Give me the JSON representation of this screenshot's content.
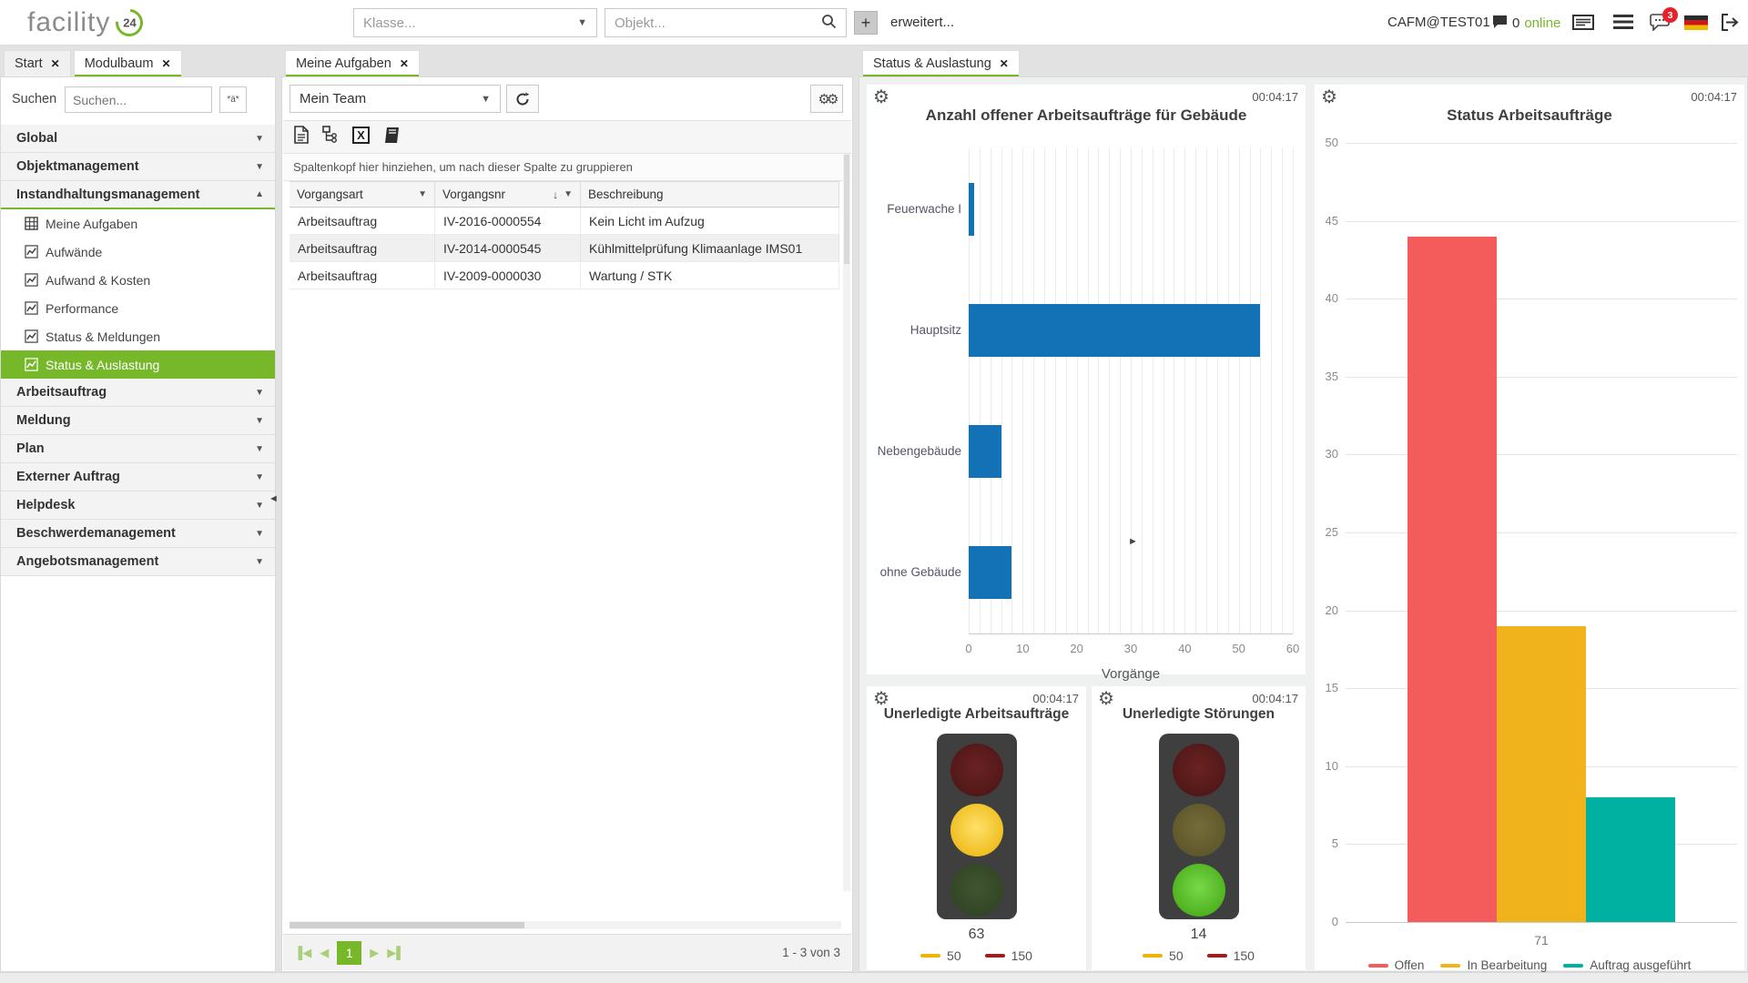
{
  "topbar": {
    "logo_text": "facility",
    "logo_badge": "24",
    "klasse_placeholder": "Klasse...",
    "objekt_placeholder": "Objekt...",
    "plus_label": "+",
    "erweitert_label": "erweitert...",
    "username": "CAFM@TEST01",
    "online_count": "0",
    "online_label": "online",
    "chat_badge_count": "3",
    "icon_names": [
      "chat-icon",
      "panel-icon",
      "menu-icon",
      "messages-icon",
      "flag-de-icon",
      "logout-icon"
    ]
  },
  "left_panel": {
    "tabs": [
      {
        "label": "Start",
        "active": false
      },
      {
        "label": "Modulbaum",
        "active": true
      }
    ],
    "search_label": "Suchen",
    "search_placeholder": "Suchen...",
    "fuzzy_button_label": "*ä*",
    "tree": [
      {
        "label": "Global",
        "type": "group",
        "state": "collapsed"
      },
      {
        "label": "Objektmanagement",
        "type": "group",
        "state": "collapsed"
      },
      {
        "label": "Instandhaltungsmanagement",
        "type": "group",
        "state": "expanded",
        "children": [
          {
            "label": "Meine Aufgaben",
            "icon": "grid-icon",
            "selected": false
          },
          {
            "label": "Aufwände",
            "icon": "chart-icon",
            "selected": false
          },
          {
            "label": "Aufwand & Kosten",
            "icon": "chart-icon",
            "selected": false
          },
          {
            "label": "Performance",
            "icon": "chart-icon",
            "selected": false
          },
          {
            "label": "Status & Meldungen",
            "icon": "chart-icon",
            "selected": false
          },
          {
            "label": "Status & Auslastung",
            "icon": "chart-icon",
            "selected": true
          }
        ]
      },
      {
        "label": "Arbeitsauftrag",
        "type": "group",
        "state": "collapsed"
      },
      {
        "label": "Meldung",
        "type": "group",
        "state": "collapsed"
      },
      {
        "label": "Plan",
        "type": "group",
        "state": "collapsed"
      },
      {
        "label": "Externer Auftrag",
        "type": "group",
        "state": "collapsed"
      },
      {
        "label": "Helpdesk",
        "type": "group",
        "state": "collapsed"
      },
      {
        "label": "Beschwerdemanagement",
        "type": "group",
        "state": "collapsed"
      },
      {
        "label": "Angebotsmanagement",
        "type": "group",
        "state": "collapsed"
      }
    ]
  },
  "tasks_panel": {
    "tab_label": "Meine Aufgaben",
    "team_select_value": "Mein Team",
    "toolbar_icon_names": [
      "document-icon",
      "hierarchy-icon",
      "excel-export-icon",
      "book-icon"
    ],
    "groupby_hint": "Spaltenkopf hier hinziehen, um nach dieser Spalte zu gruppieren",
    "table": {
      "columns": [
        "Vorgangsart",
        "Vorgangsnr",
        "Beschreibung"
      ],
      "rows": [
        [
          "Arbeitsauftrag",
          "IV-2016-0000554",
          "Kein Licht im Aufzug"
        ],
        [
          "Arbeitsauftrag",
          "IV-2014-0000545",
          "Kühlmittelprüfung Klimaanlage IMS01"
        ],
        [
          "Arbeitsauftrag",
          "IV-2009-0000030",
          "Wartung / STK"
        ]
      ]
    },
    "pagination": {
      "current_page": "1",
      "summary": "1 - 3 von 3"
    }
  },
  "dashboard_panel": {
    "tab_label": "Status & Auslastung"
  },
  "chart_data": [
    {
      "type": "bar",
      "orientation": "horizontal",
      "title": "Anzahl offener Arbeitsaufträge für Gebäude",
      "timestamp": "00:04:17",
      "categories": [
        "Feuerwache I",
        "Hauptsitz",
        "Nebengebäude",
        "ohne Gebäude"
      ],
      "values": [
        1,
        54,
        6,
        8
      ],
      "xlabel": "Vorgänge",
      "xlim": [
        0,
        60
      ],
      "xticks": [
        0,
        10,
        20,
        30,
        40,
        50,
        60
      ],
      "minor_grid_step": 2,
      "bar_color": "#1371b5",
      "grid": true,
      "legend_position": "none"
    },
    {
      "type": "bar",
      "orientation": "vertical",
      "title": "Status Arbeitsaufträge",
      "timestamp": "00:04:17",
      "categories": [
        "71"
      ],
      "series": [
        {
          "name": "Offen",
          "values": [
            44
          ],
          "color": "#f45b5b"
        },
        {
          "name": "In Bearbeitung",
          "values": [
            19
          ],
          "color": "#f1b31c"
        },
        {
          "name": "Auftrag ausgeführt",
          "values": [
            8
          ],
          "color": "#00b0a0"
        }
      ],
      "ylim": [
        0,
        50
      ],
      "yticks": [
        0,
        5,
        10,
        15,
        20,
        25,
        30,
        35,
        40,
        45,
        50
      ],
      "grid": true,
      "legend_position": "bottom"
    },
    {
      "type": "traffic-light",
      "title": "Unerledigte Arbeitsaufträge",
      "timestamp": "00:04:17",
      "value": "63",
      "active_light": "yellow",
      "thresholds": [
        {
          "label": "50",
          "color": "#f0b400"
        },
        {
          "label": "150",
          "color": "#9d1e1e"
        }
      ]
    },
    {
      "type": "traffic-light",
      "title": "Unerledigte Störungen",
      "timestamp": "00:04:17",
      "value": "14",
      "active_light": "green",
      "thresholds": [
        {
          "label": "50",
          "color": "#f0b400"
        },
        {
          "label": "150",
          "color": "#9d1e1e"
        }
      ]
    }
  ],
  "colors": {
    "accent_green": "#76b82a",
    "bar_blue": "#1371b5",
    "status_red": "#f45b5b",
    "status_amber": "#f1b31c",
    "status_teal": "#00b0a0",
    "badge_red": "#e8222c"
  }
}
